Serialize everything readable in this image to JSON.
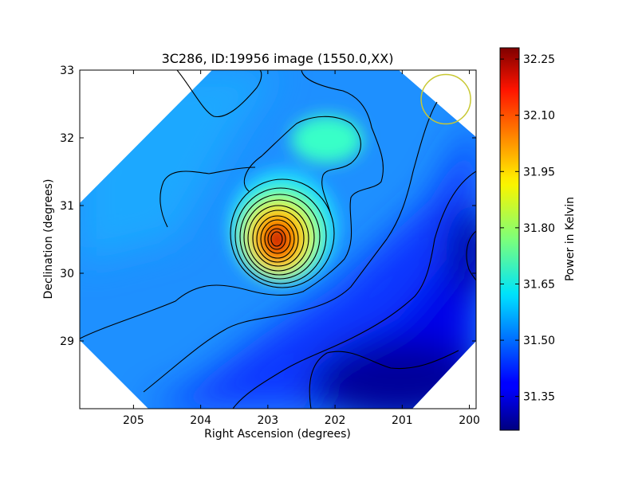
{
  "chart_data": {
    "type": "heatmap",
    "title": "3C286, ID:19956 image (1550.0,XX)",
    "xlabel": "Right Ascension (degrees)",
    "ylabel": "Declination (degrees)",
    "xlim": [
      205.8,
      199.9
    ],
    "ylim": [
      28.0,
      33.0
    ],
    "x_ticks": [
      "205",
      "204",
      "203",
      "202",
      "201",
      "200"
    ],
    "y_ticks": [
      "29",
      "30",
      "31",
      "32",
      "33"
    ],
    "colorbar": {
      "label": "Power in Kelvin",
      "range": [
        31.26,
        32.28
      ],
      "ticks": [
        "31.35",
        "31.50",
        "31.65",
        "31.80",
        "31.95",
        "32.10",
        "32.25"
      ],
      "colormap": "jet"
    },
    "peak": {
      "ra": 202.75,
      "dec": 30.5,
      "value": 32.27
    },
    "secondary_peak": {
      "ra": 202.0,
      "dec": 31.95,
      "value": 31.66
    },
    "minimum": {
      "ra": 200.2,
      "dec": 28.6,
      "value": 31.26
    },
    "beam_marker": {
      "ra": 200.35,
      "dec": 32.57,
      "color": "#c8c832"
    },
    "grid": false,
    "contours": true
  }
}
